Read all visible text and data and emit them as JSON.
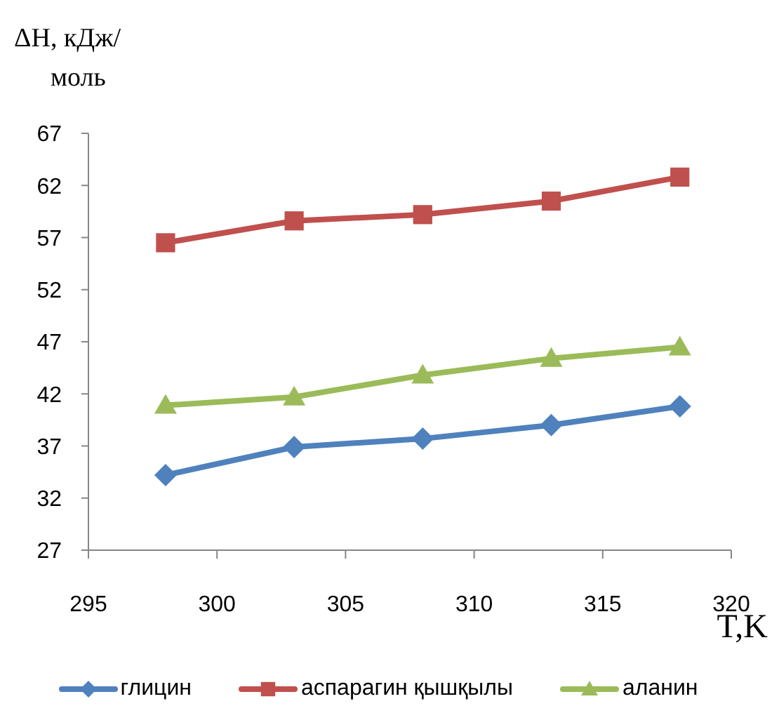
{
  "chart_data": {
    "type": "line",
    "xlabel": "T,K",
    "ylabel": "ΔH, кДж/моль",
    "x": [
      298,
      303,
      308,
      313,
      318
    ],
    "series": [
      {
        "name": "глицин",
        "color": "#4f81bd",
        "marker": "diamond",
        "values": [
          34.2,
          36.9,
          37.7,
          39.0,
          40.8
        ]
      },
      {
        "name": "аспарагин қышқылы",
        "color": "#c0504d",
        "marker": "square",
        "values": [
          56.5,
          58.6,
          59.2,
          60.5,
          62.8
        ]
      },
      {
        "name": "аланин",
        "color": "#9bbb59",
        "marker": "triangle",
        "values": [
          40.9,
          41.7,
          43.8,
          45.4,
          46.5
        ]
      }
    ],
    "xlim": [
      295,
      320
    ],
    "xticks": [
      295,
      300,
      305,
      310,
      315,
      320
    ],
    "ylim": [
      27,
      67
    ],
    "yticks": [
      27,
      32,
      37,
      42,
      47,
      52,
      57,
      62,
      67
    ],
    "grid": false,
    "legend": "bottom"
  }
}
